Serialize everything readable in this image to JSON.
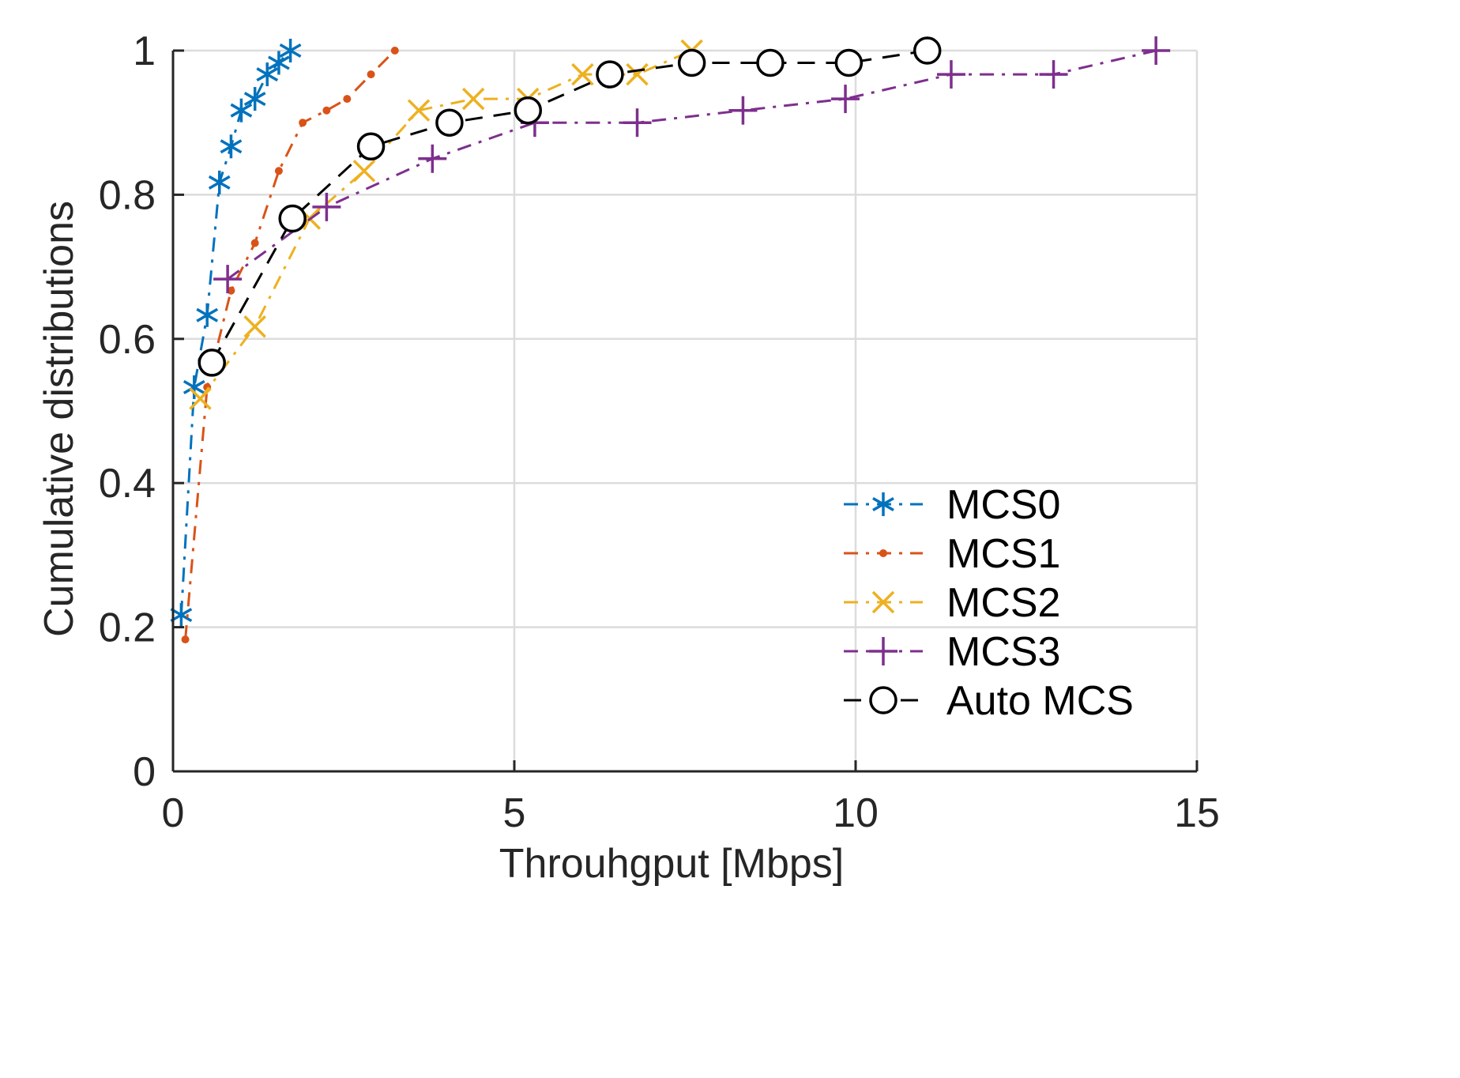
{
  "chart_data": {
    "type": "line",
    "title": "",
    "xlabel": "Throuhgput [Mbps]",
    "ylabel": "Cumulative distributions",
    "xlim": [
      0,
      15
    ],
    "ylim": [
      0,
      1
    ],
    "xticks": [
      0,
      5,
      10,
      15
    ],
    "xtick_labels": [
      "0",
      "5",
      "10",
      "15"
    ],
    "yticks": [
      0,
      0.2,
      0.4,
      0.6,
      0.8,
      1
    ],
    "ytick_labels": [
      "0",
      "0.2",
      "0.4",
      "0.6",
      "0.8",
      "1"
    ],
    "grid": true,
    "legend_position": "bottom-right",
    "series": [
      {
        "name": "MCS0",
        "color": "#0072BD",
        "marker": "asterisk",
        "line_style": "dashdot",
        "x": [
          0.12,
          0.31,
          0.5,
          0.68,
          0.85,
          1.0,
          1.2,
          1.38,
          1.55,
          1.72
        ],
        "y": [
          0.217,
          0.533,
          0.633,
          0.817,
          0.867,
          0.917,
          0.933,
          0.967,
          0.983,
          1.0
        ]
      },
      {
        "name": "MCS1",
        "color": "#D95319",
        "marker": "dot",
        "line_style": "dashdot",
        "x": [
          0.18,
          0.5,
          0.85,
          1.2,
          1.55,
          1.9,
          2.25,
          2.55,
          2.9,
          3.25
        ],
        "y": [
          0.183,
          0.533,
          0.667,
          0.733,
          0.833,
          0.9,
          0.917,
          0.933,
          0.967,
          1.0
        ]
      },
      {
        "name": "MCS2",
        "color": "#EDB120",
        "marker": "x",
        "line_style": "dashdot",
        "x": [
          0.4,
          1.2,
          2.0,
          2.8,
          3.6,
          4.4,
          5.2,
          6.0,
          6.8,
          7.6
        ],
        "y": [
          0.517,
          0.617,
          0.767,
          0.833,
          0.917,
          0.933,
          0.933,
          0.967,
          0.967,
          1.0
        ]
      },
      {
        "name": "MCS3",
        "color": "#7E2F8E",
        "marker": "plus",
        "line_style": "dashdot",
        "x": [
          0.8,
          2.25,
          3.8,
          5.3,
          6.8,
          8.35,
          9.85,
          11.4,
          12.9,
          14.4
        ],
        "y": [
          0.683,
          0.783,
          0.85,
          0.9,
          0.9,
          0.917,
          0.933,
          0.967,
          0.967,
          1.0
        ]
      },
      {
        "name": "Auto MCS",
        "color": "#000000",
        "marker": "circle",
        "line_style": "dashed",
        "x": [
          0.57,
          1.75,
          2.9,
          4.05,
          5.2,
          6.4,
          7.6,
          8.75,
          9.9,
          11.05
        ],
        "y": [
          0.567,
          0.767,
          0.867,
          0.9,
          0.917,
          0.967,
          0.983,
          0.983,
          0.983,
          1.0
        ]
      }
    ]
  }
}
